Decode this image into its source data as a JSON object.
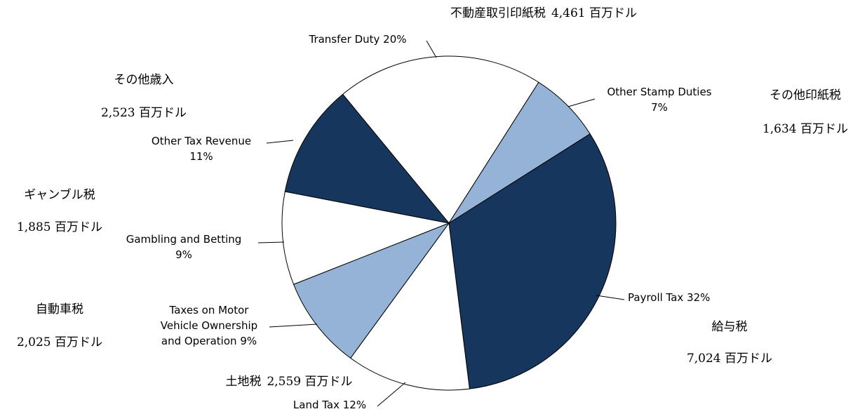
{
  "chart_data": {
    "type": "pie",
    "categories": [
      "Transfer Duty",
      "Other Stamp Duties",
      "Payroll Tax",
      "Land Tax",
      "Taxes on Motor Vehicle Ownership and Operation",
      "Gambling and Betting",
      "Other Tax Revenue"
    ],
    "values": [
      20,
      7,
      32,
      12,
      9,
      9,
      11
    ],
    "value_labels": [
      "20%",
      "7%",
      "32%",
      "12%",
      "9%",
      "9%",
      "11%"
    ],
    "colors": [
      "#ffffff",
      "#95b3d7",
      "#17365d",
      "#ffffff",
      "#95b3d7",
      "#ffffff",
      "#17365d"
    ],
    "annotations": [
      {
        "name": "不動産取引印紙税",
        "amount": "4,461 百万ドル"
      },
      {
        "name": "その他印紙税",
        "amount": "1,634 百万ドル"
      },
      {
        "name": "給与税",
        "amount": "7,024 百万ドル"
      },
      {
        "name": "土地税",
        "amount": "2,559 百万ドル"
      },
      {
        "name": "自動車税",
        "amount": "2,025 百万ドル"
      },
      {
        "name": "ギャンブル税",
        "amount": "1,885 百万ドル"
      },
      {
        "name": "その他歳入",
        "amount": "2,523 百万ドル"
      }
    ]
  }
}
